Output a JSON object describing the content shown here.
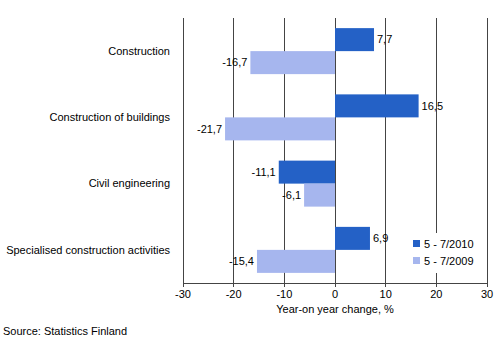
{
  "chart_data": {
    "type": "bar",
    "orientation": "horizontal",
    "categories": [
      "Construction",
      "Construction of buildings",
      "Civil engineering",
      "Specialised construction activities"
    ],
    "series": [
      {
        "name": "5 - 7/2010",
        "color": "#2461c6",
        "values": [
          7.7,
          16.5,
          -11.1,
          6.9
        ],
        "value_labels": [
          "7,7",
          "16,5",
          "-11,1",
          "6,9"
        ]
      },
      {
        "name": "5 - 7/2009",
        "color": "#a6b6ee",
        "values": [
          -16.7,
          -21.7,
          -6.1,
          -15.4
        ],
        "value_labels": [
          "-16,7",
          "-21,7",
          "-6,1",
          "-15,4"
        ]
      }
    ],
    "x_label": "Year-on year change, %",
    "xlim": [
      -30,
      30
    ],
    "xticks": [
      -30,
      -20,
      -10,
      0,
      10,
      20,
      30
    ],
    "grid": true,
    "legend": "lower right",
    "data_labels": true,
    "annotations": [
      "Source: Statistics Finland"
    ]
  }
}
